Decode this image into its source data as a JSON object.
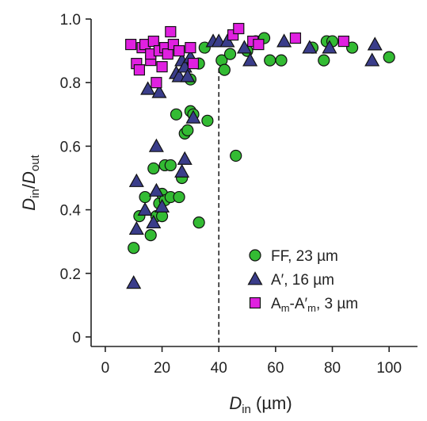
{
  "chart_data": {
    "type": "scatter",
    "xlabel": {
      "main": "D",
      "sub": "in",
      "rest": " (µm)"
    },
    "ylabel": {
      "main1": "D",
      "sub1": "in",
      "slash": "/",
      "main2": "D",
      "sub2": "out"
    },
    "xlim": [
      -5,
      110
    ],
    "ylim": [
      -0.03,
      1.0
    ],
    "xticks": [
      0,
      20,
      40,
      60,
      80,
      100
    ],
    "xtick_labels": [
      "0",
      "20",
      "40",
      "60",
      "80",
      "100"
    ],
    "yticks": [
      0,
      0.2,
      0.4,
      0.6,
      0.8,
      1.0
    ],
    "ytick_labels": [
      "0",
      "0.2",
      "0.4",
      "0.6",
      "0.8",
      "1.0"
    ],
    "reference_line": {
      "x": 40,
      "style": "dashed"
    },
    "legend_position": "lower-right",
    "series": [
      {
        "label": "FF, 23 µm",
        "legend_parts": [
          {
            "t": "FF, 23 µm"
          }
        ],
        "marker": "circle",
        "color": "#33bb33",
        "points": [
          [
            10,
            0.28
          ],
          [
            12,
            0.38
          ],
          [
            14,
            0.44
          ],
          [
            16,
            0.32
          ],
          [
            17,
            0.53
          ],
          [
            18,
            0.38
          ],
          [
            19,
            0.42
          ],
          [
            20,
            0.38
          ],
          [
            20,
            0.45
          ],
          [
            21,
            0.54
          ],
          [
            21,
            0.43
          ],
          [
            23,
            0.54
          ],
          [
            23,
            0.44
          ],
          [
            25,
            0.7
          ],
          [
            26,
            0.44
          ],
          [
            27,
            0.5
          ],
          [
            28,
            0.64
          ],
          [
            29,
            0.65
          ],
          [
            30,
            0.71
          ],
          [
            31,
            0.7
          ],
          [
            30,
            0.81
          ],
          [
            33,
            0.86
          ],
          [
            33,
            0.36
          ],
          [
            35,
            0.91
          ],
          [
            36,
            0.68
          ],
          [
            41,
            0.87
          ],
          [
            42,
            0.84
          ],
          [
            44,
            0.89
          ],
          [
            46,
            0.57
          ],
          [
            50,
            0.9
          ],
          [
            53,
            0.93
          ],
          [
            56,
            0.94
          ],
          [
            58,
            0.87
          ],
          [
            62,
            0.87
          ],
          [
            73,
            0.91
          ],
          [
            77,
            0.87
          ],
          [
            78,
            0.93
          ],
          [
            80,
            0.93
          ],
          [
            87,
            0.91
          ],
          [
            100,
            0.88
          ]
        ]
      },
      {
        "label": "A′, 16 µm",
        "legend_parts": [
          {
            "t": "A′, 16 µm"
          }
        ],
        "marker": "triangle",
        "color": "#3a3d8a",
        "points": [
          [
            10,
            0.17
          ],
          [
            11,
            0.49
          ],
          [
            11,
            0.34
          ],
          [
            14,
            0.4
          ],
          [
            15,
            0.78
          ],
          [
            17,
            0.36
          ],
          [
            18,
            0.46
          ],
          [
            18,
            0.6
          ],
          [
            19,
            0.77
          ],
          [
            20,
            0.41
          ],
          [
            25,
            0.83
          ],
          [
            26,
            0.82
          ],
          [
            27,
            0.87
          ],
          [
            27,
            0.52
          ],
          [
            28,
            0.85
          ],
          [
            28,
            0.56
          ],
          [
            29,
            0.82
          ],
          [
            30,
            0.88
          ],
          [
            31,
            0.69
          ],
          [
            38,
            0.93
          ],
          [
            40,
            0.93
          ],
          [
            43,
            0.93
          ],
          [
            49,
            0.91
          ],
          [
            51,
            0.87
          ],
          [
            63,
            0.93
          ],
          [
            72,
            0.91
          ],
          [
            79,
            0.91
          ],
          [
            94,
            0.87
          ],
          [
            95,
            0.92
          ]
        ]
      },
      {
        "label": "Am-A′m, 3 µm",
        "legend_parts": [
          {
            "t": "A"
          },
          {
            "t": "m",
            "sub": true
          },
          {
            "t": "-A′"
          },
          {
            "t": "m",
            "sub": true
          },
          {
            "t": ", 3 µm"
          }
        ],
        "marker": "square",
        "color": "#e020e0",
        "points": [
          [
            9,
            0.92
          ],
          [
            11,
            0.86
          ],
          [
            12,
            0.84
          ],
          [
            13,
            0.91
          ],
          [
            14,
            0.92
          ],
          [
            16,
            0.87
          ],
          [
            16,
            0.89
          ],
          [
            17,
            0.93
          ],
          [
            18,
            0.8
          ],
          [
            19,
            0.9
          ],
          [
            20,
            0.85
          ],
          [
            21,
            0.91
          ],
          [
            22,
            0.89
          ],
          [
            23,
            0.96
          ],
          [
            24,
            0.92
          ],
          [
            26,
            0.9
          ],
          [
            30,
            0.91
          ],
          [
            31,
            0.86
          ],
          [
            45,
            0.95
          ],
          [
            47,
            0.97
          ],
          [
            52,
            0.93
          ],
          [
            54,
            0.92
          ],
          [
            67,
            0.94
          ],
          [
            84,
            0.93
          ]
        ]
      }
    ]
  }
}
